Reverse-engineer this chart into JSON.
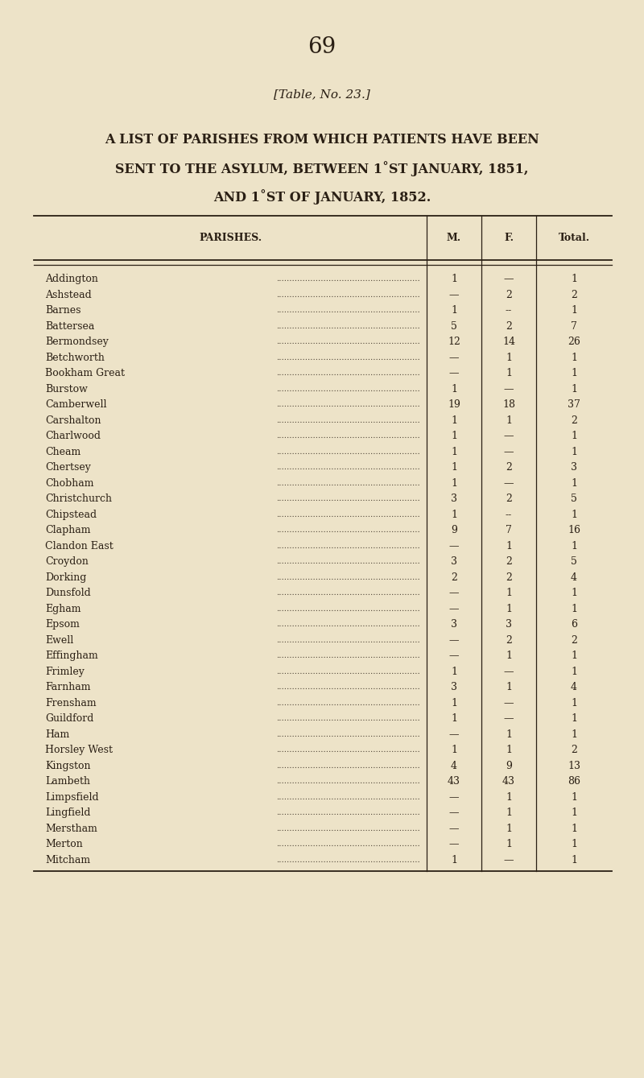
{
  "page_number": "69",
  "table_ref": "[Table, No. 23.]",
  "title_line1": "A LIST OF PARISHES FROM WHICH PATIENTS HAVE BEEN",
  "title_line2": "SENT TO THE ASYLUM, BETWEEN 1˚ST JANUARY, 1851,",
  "title_line3": "AND 1˚ST OF JANUARY, 1852.",
  "col_headers": [
    "PARISHES.",
    "M.",
    "F.",
    "Total."
  ],
  "rows": [
    [
      "Addington",
      "1",
      "—",
      "1"
    ],
    [
      "Ashstead",
      "—",
      "2",
      "2"
    ],
    [
      "Barnes",
      "1",
      "--",
      "1"
    ],
    [
      "Battersea",
      "5",
      "2",
      "7"
    ],
    [
      "Bermondsey",
      "12",
      "14",
      "26"
    ],
    [
      "Betchworth",
      "—",
      "1",
      "1"
    ],
    [
      "Bookham Great",
      "—",
      "1",
      "1"
    ],
    [
      "Burstow",
      "1",
      "—",
      "1"
    ],
    [
      "Camberwell",
      "19",
      "18",
      "37"
    ],
    [
      "Carshalton",
      "1",
      "1",
      "2"
    ],
    [
      "Charlwood",
      "1",
      "—",
      "1"
    ],
    [
      "Cheam",
      "1",
      "—",
      "1"
    ],
    [
      "Chertsey",
      "1",
      "2",
      "3"
    ],
    [
      "Chobham",
      "1",
      "—",
      "1"
    ],
    [
      "Christchurch",
      "3",
      "2",
      "5"
    ],
    [
      "Chipstead",
      "1",
      "--",
      "1"
    ],
    [
      "Clapham",
      "9",
      "7",
      "16"
    ],
    [
      "Clandon East",
      "—",
      "1",
      "1"
    ],
    [
      "Croydon",
      "3",
      "2",
      "5"
    ],
    [
      "Dorking",
      "2",
      "2",
      "4"
    ],
    [
      "Dunsfold",
      "—",
      "1",
      "1"
    ],
    [
      "Egham",
      "—",
      "1",
      "1"
    ],
    [
      "Epsom",
      "3",
      "3",
      "6"
    ],
    [
      "Ewell",
      "—",
      "2",
      "2"
    ],
    [
      "Effingham",
      "—",
      "1",
      "1"
    ],
    [
      "Frimley",
      "1",
      "—",
      "1"
    ],
    [
      "Farnham",
      "3",
      "1",
      "4"
    ],
    [
      "Frensham",
      "1",
      "—",
      "1"
    ],
    [
      "Guildford",
      "1",
      "—",
      "1"
    ],
    [
      "Ham",
      "—",
      "1",
      "1"
    ],
    [
      "Horsley West",
      "1",
      "1",
      "2"
    ],
    [
      "Kingston",
      "4",
      "9",
      "13"
    ],
    [
      "Lambeth",
      "43",
      "43",
      "86"
    ],
    [
      "Limpsfield",
      "—",
      "1",
      "1"
    ],
    [
      "Lingfield",
      "—",
      "1",
      "1"
    ],
    [
      "Merstham",
      "—",
      "1",
      "1"
    ],
    [
      "Merton",
      "—",
      "1",
      "1"
    ],
    [
      "Mitcham",
      "1",
      "—",
      "1"
    ]
  ],
  "bg_color": "#EDE3C8",
  "text_color": "#2a1f14",
  "line_color": "#2a1f14"
}
